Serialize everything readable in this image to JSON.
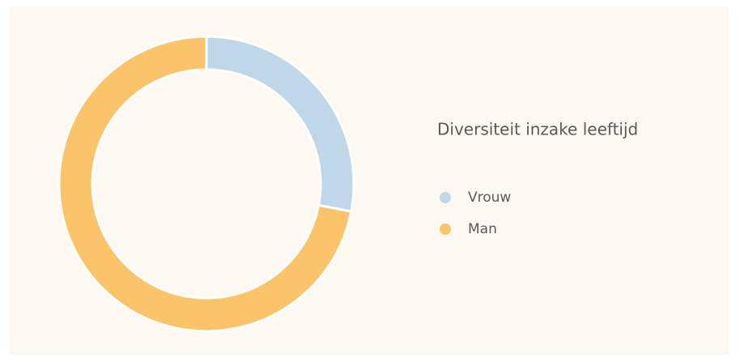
{
  "chart_data": {
    "type": "donut",
    "title": "Diversiteit inzake leeftijd",
    "categories": [
      "Vrouw",
      "Man"
    ],
    "values": [
      28,
      72
    ],
    "colors": [
      "#bfd7e8",
      "#fbc46a"
    ],
    "legend": "right"
  }
}
